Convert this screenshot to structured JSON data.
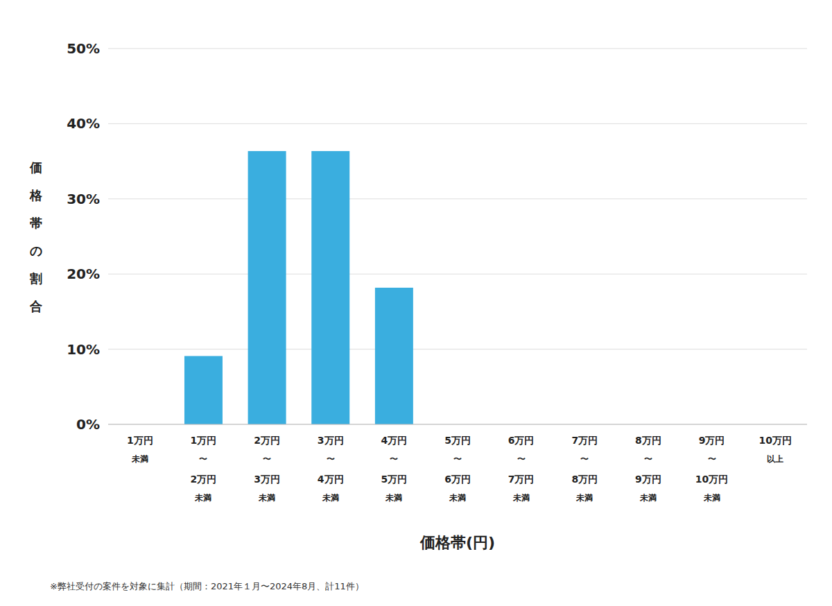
{
  "chart_data": {
    "type": "bar",
    "categories": [
      "1万円\n未満",
      "1万円\n〜\n2万円\n未満",
      "2万円\n〜\n3万円\n未満",
      "3万円\n〜\n4万円\n未満",
      "4万円\n〜\n5万円\n未満",
      "5万円\n〜\n6万円\n未満",
      "6万円\n〜\n7万円\n未満",
      "7万円\n〜\n8万円\n未満",
      "8万円\n〜\n9万円\n未満",
      "9万円\n〜\n10万円\n未満",
      "10万円\n以上"
    ],
    "values": [
      0.0,
      0.0909,
      0.3636,
      0.3636,
      0.1818,
      0.0,
      0.0,
      0.0,
      0.0,
      0.0,
      0.0
    ],
    "color": "#3aaedf",
    "ylim": [
      0,
      0.5
    ],
    "yticks": [
      {
        "value": 0.0,
        "label": "0%"
      },
      {
        "value": 0.1,
        "label": "10%"
      },
      {
        "value": 0.2,
        "label": "20%"
      },
      {
        "value": 0.3,
        "label": "30%"
      },
      {
        "value": 0.4,
        "label": "40%"
      },
      {
        "value": 0.5,
        "label": "50%"
      }
    ],
    "grid": true,
    "xlabel": "価格帯(円)",
    "ylabel": "価格帯の割合",
    "footnote": "※弊社受付の案件を対象に集計（期間：2021年１月〜2024年8月、計11件）"
  }
}
